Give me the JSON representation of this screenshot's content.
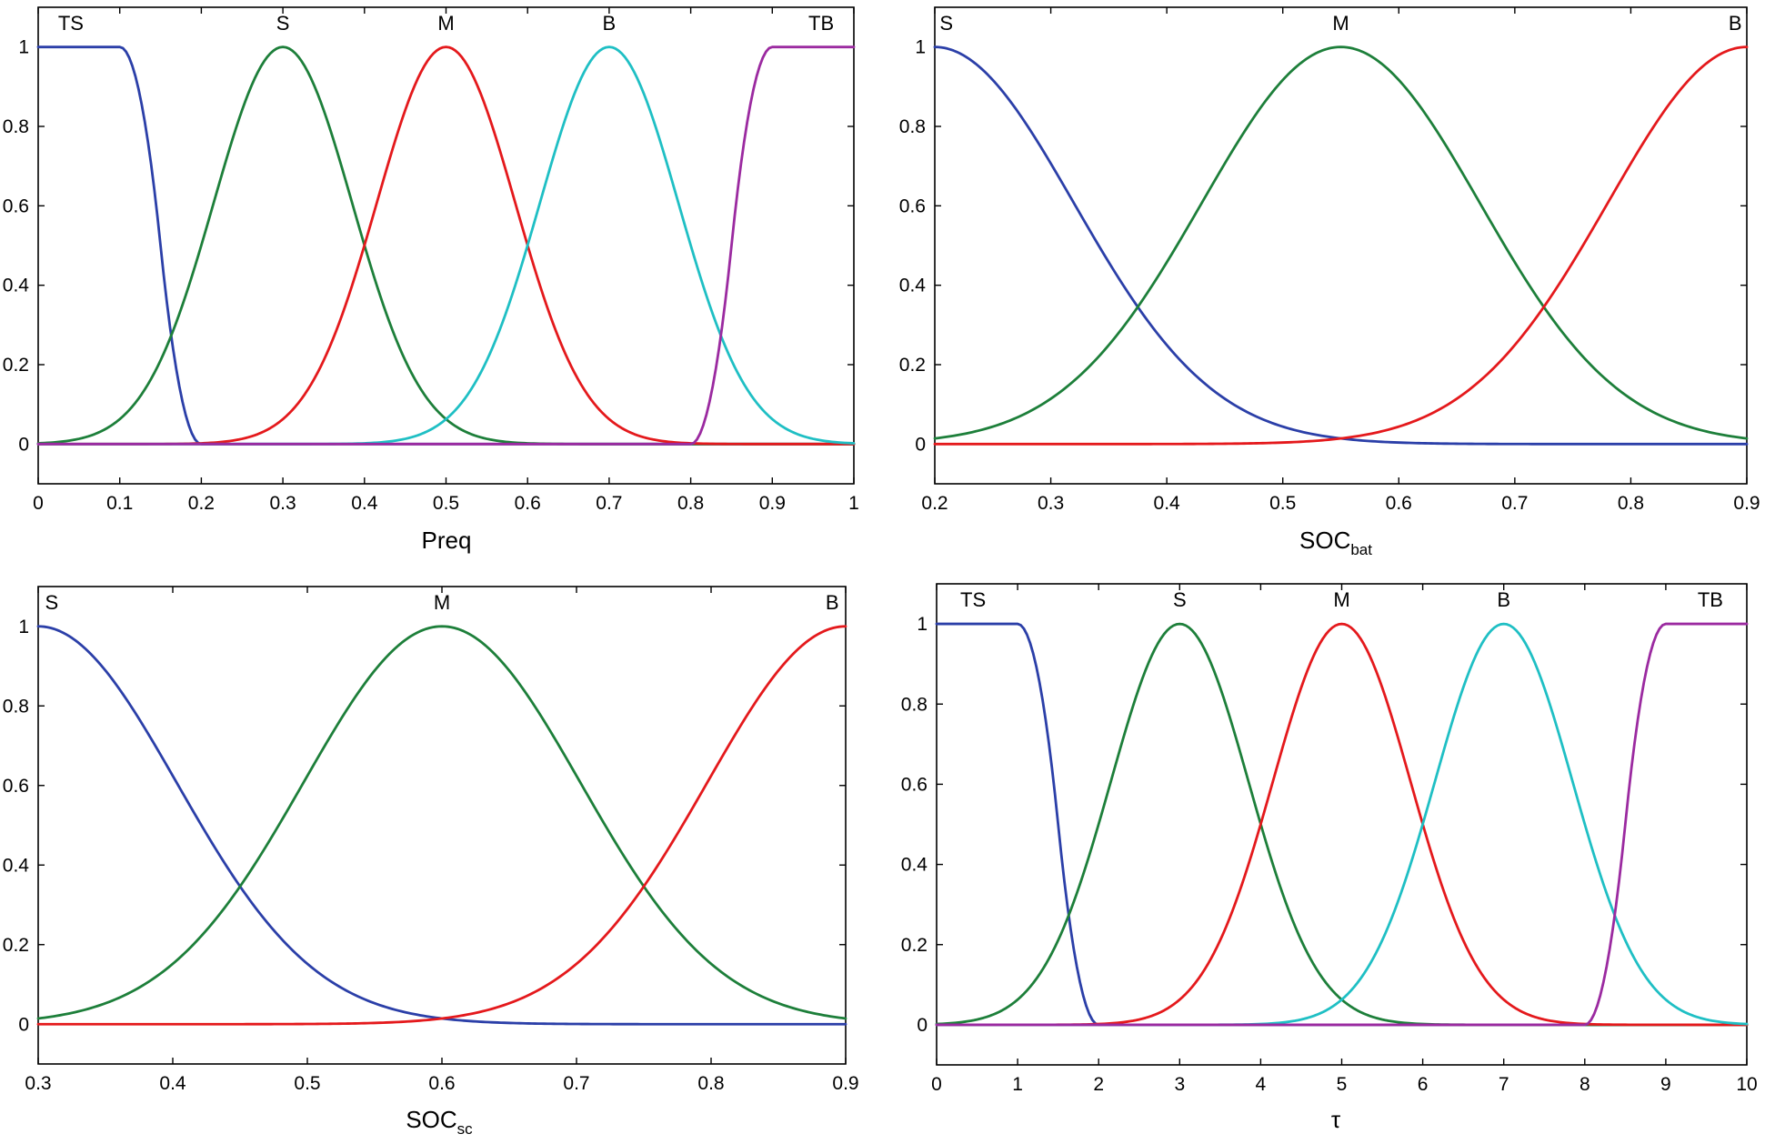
{
  "colors": {
    "blue": "#2b3fa8",
    "green": "#1d7f3a",
    "red": "#e4191c",
    "cyan": "#1fbfc4",
    "purple": "#9b2aa0"
  },
  "chart_data": [
    {
      "type": "line",
      "xlabel": "Preq",
      "xlabel_sub": "",
      "xlim": [
        0,
        1
      ],
      "ylim": [
        -0.1,
        1.1
      ],
      "xticks": [
        0,
        0.1,
        0.2,
        0.3,
        0.4,
        0.5,
        0.6,
        0.7,
        0.8,
        0.9,
        1
      ],
      "xtick_labels": [
        "0",
        "0.1",
        "0.2",
        "0.3",
        "0.4",
        "0.5",
        "0.6",
        "0.7",
        "0.8",
        "0.9",
        "1"
      ],
      "yticks": [
        0,
        0.2,
        0.4,
        0.6,
        0.8,
        1
      ],
      "ytick_labels": [
        "0",
        "0.2",
        "0.4",
        "0.6",
        "0.8",
        "1"
      ],
      "series": [
        {
          "name": "TS",
          "color": "blue",
          "shape": "z",
          "params": [
            0.1,
            0.2
          ],
          "label_x": 0.04
        },
        {
          "name": "S",
          "color": "green",
          "shape": "gauss",
          "params": [
            0.3,
            0.085
          ],
          "label_x": 0.3
        },
        {
          "name": "M",
          "color": "red",
          "shape": "gauss",
          "params": [
            0.5,
            0.085
          ],
          "label_x": 0.5
        },
        {
          "name": "B",
          "color": "cyan",
          "shape": "gauss",
          "params": [
            0.7,
            0.085
          ],
          "label_x": 0.7
        },
        {
          "name": "TB",
          "color": "purple",
          "shape": "s",
          "params": [
            0.8,
            0.9
          ],
          "label_x": 0.96
        }
      ]
    },
    {
      "type": "line",
      "xlabel": "SOC",
      "xlabel_sub": "bat",
      "xlim": [
        0.2,
        0.9
      ],
      "ylim": [
        -0.1,
        1.1
      ],
      "xticks": [
        0.2,
        0.3,
        0.4,
        0.5,
        0.6,
        0.7,
        0.8,
        0.9
      ],
      "xtick_labels": [
        "0.2",
        "0.3",
        "0.4",
        "0.5",
        "0.6",
        "0.7",
        "0.8",
        "0.9"
      ],
      "yticks": [
        0,
        0.2,
        0.4,
        0.6,
        0.8,
        1
      ],
      "ytick_labels": [
        "0",
        "0.2",
        "0.4",
        "0.6",
        "0.8",
        "1"
      ],
      "series": [
        {
          "name": "S",
          "color": "blue",
          "shape": "gauss",
          "params": [
            0.2,
            0.12
          ],
          "label_x": 0.21
        },
        {
          "name": "M",
          "color": "green",
          "shape": "gauss",
          "params": [
            0.55,
            0.12
          ],
          "label_x": 0.55
        },
        {
          "name": "B",
          "color": "red",
          "shape": "gauss",
          "params": [
            0.9,
            0.12
          ],
          "label_x": 0.89
        }
      ]
    },
    {
      "type": "line",
      "xlabel": "SOC",
      "xlabel_sub": "sc",
      "xlim": [
        0.3,
        0.9
      ],
      "ylim": [
        -0.1,
        1.1
      ],
      "xticks": [
        0.3,
        0.4,
        0.5,
        0.6,
        0.7,
        0.8,
        0.9
      ],
      "xtick_labels": [
        "0.3",
        "0.4",
        "0.5",
        "0.6",
        "0.7",
        "0.8",
        "0.9"
      ],
      "yticks": [
        0,
        0.2,
        0.4,
        0.6,
        0.8,
        1
      ],
      "ytick_labels": [
        "0",
        "0.2",
        "0.4",
        "0.6",
        "0.8",
        "1"
      ],
      "series": [
        {
          "name": "S",
          "color": "blue",
          "shape": "gauss",
          "params": [
            0.3,
            0.103
          ],
          "label_x": 0.31
        },
        {
          "name": "M",
          "color": "green",
          "shape": "gauss",
          "params": [
            0.6,
            0.103
          ],
          "label_x": 0.6
        },
        {
          "name": "B",
          "color": "red",
          "shape": "gauss",
          "params": [
            0.9,
            0.103
          ],
          "label_x": 0.89
        }
      ]
    },
    {
      "type": "line",
      "xlabel": "τ",
      "xlabel_sub": "",
      "xlim": [
        0,
        10
      ],
      "ylim": [
        -0.1,
        1.1
      ],
      "xticks": [
        0,
        1,
        2,
        3,
        4,
        5,
        6,
        7,
        8,
        9,
        10
      ],
      "xtick_labels": [
        "0",
        "1",
        "2",
        "3",
        "4",
        "5",
        "6",
        "7",
        "8",
        "9",
        "10"
      ],
      "yticks": [
        0,
        0.2,
        0.4,
        0.6,
        0.8,
        1
      ],
      "ytick_labels": [
        "0",
        "0.2",
        "0.4",
        "0.6",
        "0.8",
        "1"
      ],
      "series": [
        {
          "name": "TS",
          "color": "blue",
          "shape": "z",
          "params": [
            1,
            2
          ],
          "label_x": 0.45
        },
        {
          "name": "S",
          "color": "green",
          "shape": "gauss",
          "params": [
            3,
            0.85
          ],
          "label_x": 3
        },
        {
          "name": "M",
          "color": "red",
          "shape": "gauss",
          "params": [
            5,
            0.85
          ],
          "label_x": 5
        },
        {
          "name": "B",
          "color": "cyan",
          "shape": "gauss",
          "params": [
            7,
            0.85
          ],
          "label_x": 7
        },
        {
          "name": "TB",
          "color": "purple",
          "shape": "s",
          "params": [
            8,
            9
          ],
          "label_x": 9.55
        }
      ]
    }
  ]
}
